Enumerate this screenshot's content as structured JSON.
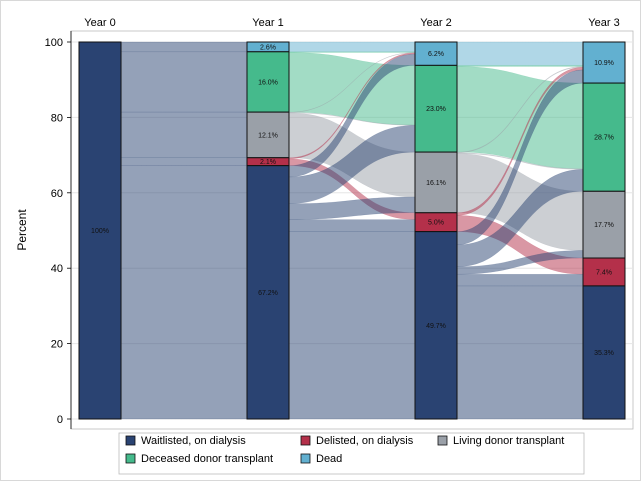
{
  "chart_data": {
    "type": "alluvial",
    "title": "",
    "xlabel": "",
    "ylabel": "Percent",
    "ylim": [
      0,
      100
    ],
    "yticks": [
      0,
      20,
      40,
      60,
      80,
      100
    ],
    "grid": true,
    "legend_position": "bottom",
    "categories": [
      "Year 0",
      "Year 1",
      "Year 2",
      "Year 3"
    ],
    "states": [
      {
        "key": "dead",
        "name": "Dead",
        "color": "#62b0d0"
      },
      {
        "key": "deceased",
        "name": "Deceased donor transplant",
        "color": "#45ba8c"
      },
      {
        "key": "living",
        "name": "Living donor transplant",
        "color": "#9aa0a8"
      },
      {
        "key": "delisted",
        "name": "Delisted, on dialysis",
        "color": "#b4304a"
      },
      {
        "key": "waitlist",
        "name": "Waitlisted, on dialysis",
        "color": "#2a4372"
      }
    ],
    "legend_order": [
      "waitlist",
      "delisted",
      "living",
      "deceased",
      "dead"
    ],
    "values": [
      {
        "dead": 0,
        "deceased": 0,
        "living": 0,
        "delisted": 0,
        "waitlist": 100
      },
      {
        "dead": 2.6,
        "deceased": 16.0,
        "living": 12.1,
        "delisted": 2.1,
        "waitlist": 67.2
      },
      {
        "dead": 6.2,
        "deceased": 23.0,
        "living": 16.1,
        "delisted": 5.0,
        "waitlist": 49.7
      },
      {
        "dead": 10.9,
        "deceased": 28.7,
        "living": 17.7,
        "delisted": 7.4,
        "waitlist": 35.3
      }
    ],
    "labels": [
      {
        "waitlist": "100%"
      },
      {
        "dead": "2.6%",
        "deceased": "16.0%",
        "living": "12.1%",
        "delisted": "2.1%",
        "waitlist": "67.2%"
      },
      {
        "dead": "6.2%",
        "deceased": "23.0%",
        "living": "16.1%",
        "delisted": "5.0%",
        "waitlist": "49.7%"
      },
      {
        "dead": "10.9%",
        "deceased": "28.7%",
        "living": "17.7%",
        "delisted": "7.4%",
        "waitlist": "35.3%"
      }
    ],
    "flows": [
      [
        [
          "waitlist",
          "dead",
          2.6
        ],
        [
          "waitlist",
          "deceased",
          16.0
        ],
        [
          "waitlist",
          "living",
          12.1
        ],
        [
          "waitlist",
          "delisted",
          2.1
        ],
        [
          "waitlist",
          "waitlist",
          67.2
        ]
      ],
      [
        [
          "dead",
          "dead",
          2.6
        ],
        [
          "deceased",
          "dead",
          0.2
        ],
        [
          "deceased",
          "deceased",
          15.8
        ],
        [
          "living",
          "dead",
          0.1
        ],
        [
          "living",
          "deceased",
          0.1
        ],
        [
          "living",
          "living",
          11.9
        ],
        [
          "delisted",
          "dead",
          0.3
        ],
        [
          "delisted",
          "delisted",
          1.8
        ],
        [
          "waitlist",
          "dead",
          3.0
        ],
        [
          "waitlist",
          "deceased",
          7.1
        ],
        [
          "waitlist",
          "living",
          4.2
        ],
        [
          "waitlist",
          "delisted",
          3.2
        ],
        [
          "waitlist",
          "waitlist",
          49.7
        ]
      ],
      [
        [
          "dead",
          "dead",
          6.2
        ],
        [
          "deceased",
          "dead",
          0.3
        ],
        [
          "deceased",
          "deceased",
          22.7
        ],
        [
          "living",
          "dead",
          0.2
        ],
        [
          "living",
          "deceased",
          0.2
        ],
        [
          "living",
          "living",
          15.7
        ],
        [
          "delisted",
          "dead",
          0.7
        ],
        [
          "delisted",
          "delisted",
          4.3
        ],
        [
          "waitlist",
          "dead",
          3.5
        ],
        [
          "waitlist",
          "deceased",
          5.8
        ],
        [
          "waitlist",
          "living",
          2.0
        ],
        [
          "waitlist",
          "delisted",
          3.1
        ],
        [
          "waitlist",
          "waitlist",
          35.3
        ]
      ]
    ]
  }
}
